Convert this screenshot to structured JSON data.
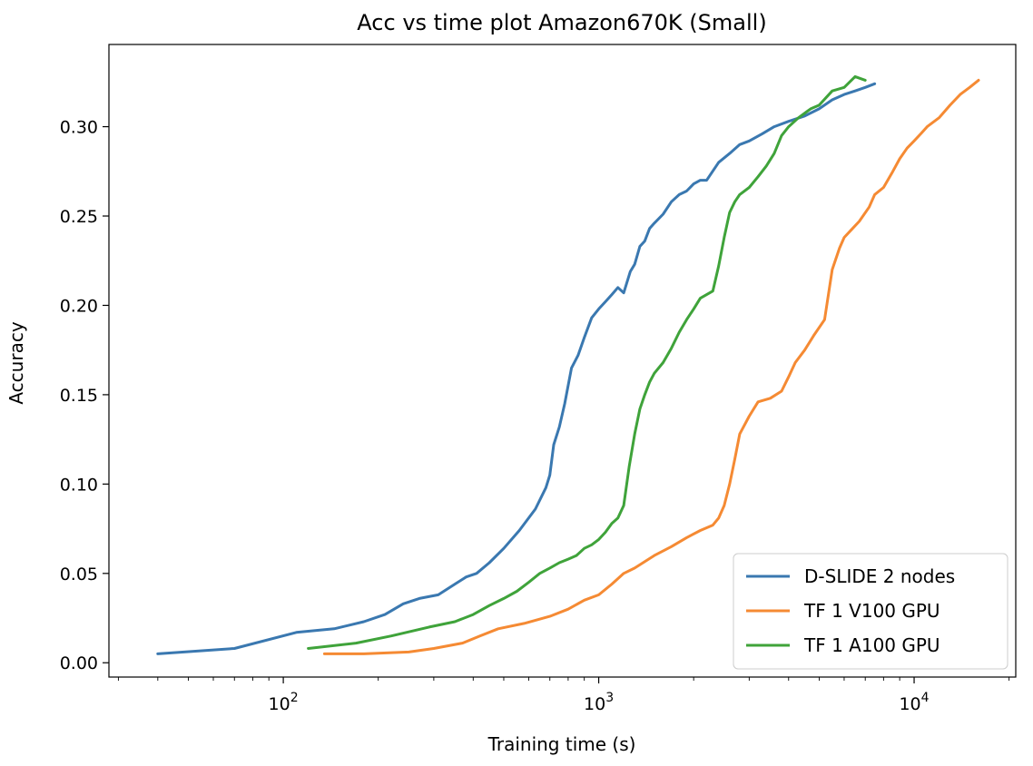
{
  "chart_data": {
    "type": "line",
    "title": "Acc vs time plot Amazon670K (Small)",
    "xlabel": "Training time (s)",
    "ylabel": "Accuracy",
    "xscale": "log",
    "xlim": [
      28,
      21000
    ],
    "ylim": [
      -0.008,
      0.346
    ],
    "yticks": [
      0.0,
      0.05,
      0.1,
      0.15,
      0.2,
      0.25,
      0.3
    ],
    "ytick_labels": [
      "0.00",
      "0.05",
      "0.10",
      "0.15",
      "0.20",
      "0.25",
      "0.30"
    ],
    "xticks": [
      100,
      1000,
      10000
    ],
    "xtick_labels": [
      {
        "base": "10",
        "exp": "2"
      },
      {
        "base": "10",
        "exp": "3"
      },
      {
        "base": "10",
        "exp": "4"
      }
    ],
    "grid": false,
    "legend_position": "lower-right",
    "series": [
      {
        "name": "D-SLIDE 2 nodes",
        "color": "#3a78b0",
        "x": [
          40,
          70,
          110,
          145,
          180,
          210,
          240,
          270,
          310,
          350,
          380,
          410,
          450,
          500,
          560,
          630,
          680,
          700,
          720,
          750,
          780,
          820,
          860,
          900,
          950,
          1000,
          1050,
          1100,
          1150,
          1200,
          1260,
          1300,
          1350,
          1400,
          1450,
          1500,
          1600,
          1700,
          1800,
          1900,
          2000,
          2100,
          2200,
          2400,
          2600,
          2800,
          3000,
          3300,
          3600,
          4000,
          4500,
          5000,
          5500,
          6000,
          6500,
          7000,
          7500
        ],
        "y": [
          0.005,
          0.008,
          0.017,
          0.019,
          0.023,
          0.027,
          0.033,
          0.036,
          0.038,
          0.044,
          0.048,
          0.05,
          0.056,
          0.064,
          0.074,
          0.086,
          0.098,
          0.105,
          0.122,
          0.132,
          0.145,
          0.165,
          0.172,
          0.182,
          0.193,
          0.198,
          0.202,
          0.206,
          0.21,
          0.207,
          0.219,
          0.223,
          0.233,
          0.236,
          0.243,
          0.246,
          0.251,
          0.258,
          0.262,
          0.264,
          0.268,
          0.27,
          0.27,
          0.28,
          0.285,
          0.29,
          0.292,
          0.296,
          0.3,
          0.303,
          0.306,
          0.31,
          0.315,
          0.318,
          0.32,
          0.322,
          0.324
        ]
      },
      {
        "name": "TF 1 V100 GPU",
        "color": "#f58a33",
        "x": [
          135,
          180,
          250,
          300,
          370,
          420,
          480,
          580,
          700,
          800,
          900,
          1000,
          1100,
          1200,
          1300,
          1500,
          1700,
          1900,
          2100,
          2300,
          2400,
          2500,
          2600,
          2700,
          2800,
          3000,
          3200,
          3500,
          3800,
          4000,
          4200,
          4500,
          4800,
          5200,
          5500,
          5800,
          6000,
          6300,
          6700,
          7200,
          7500,
          8000,
          8500,
          9000,
          9500,
          10000,
          10500,
          11000,
          12000,
          13000,
          14000,
          15000,
          16000
        ],
        "y": [
          0.005,
          0.005,
          0.006,
          0.008,
          0.011,
          0.015,
          0.019,
          0.022,
          0.026,
          0.03,
          0.035,
          0.038,
          0.044,
          0.05,
          0.053,
          0.06,
          0.065,
          0.07,
          0.074,
          0.077,
          0.081,
          0.088,
          0.1,
          0.114,
          0.128,
          0.138,
          0.146,
          0.148,
          0.152,
          0.16,
          0.168,
          0.175,
          0.183,
          0.192,
          0.22,
          0.232,
          0.238,
          0.242,
          0.247,
          0.255,
          0.262,
          0.266,
          0.274,
          0.282,
          0.288,
          0.292,
          0.296,
          0.3,
          0.305,
          0.312,
          0.318,
          0.322,
          0.326
        ]
      },
      {
        "name": "TF 1 A100 GPU",
        "color": "#3fa33a",
        "x": [
          120,
          170,
          220,
          290,
          350,
          400,
          450,
          500,
          550,
          600,
          650,
          700,
          750,
          800,
          850,
          900,
          950,
          1000,
          1050,
          1100,
          1150,
          1200,
          1250,
          1300,
          1350,
          1400,
          1450,
          1500,
          1600,
          1700,
          1800,
          1900,
          2000,
          2100,
          2200,
          2300,
          2400,
          2500,
          2600,
          2700,
          2800,
          3000,
          3200,
          3400,
          3600,
          3800,
          4000,
          4300,
          4700,
          5000,
          5500,
          6000,
          6500,
          7000
        ],
        "y": [
          0.008,
          0.011,
          0.015,
          0.02,
          0.023,
          0.027,
          0.032,
          0.036,
          0.04,
          0.045,
          0.05,
          0.053,
          0.056,
          0.058,
          0.06,
          0.064,
          0.066,
          0.069,
          0.073,
          0.078,
          0.081,
          0.088,
          0.11,
          0.128,
          0.142,
          0.15,
          0.157,
          0.162,
          0.168,
          0.176,
          0.185,
          0.192,
          0.198,
          0.204,
          0.206,
          0.208,
          0.222,
          0.238,
          0.252,
          0.258,
          0.262,
          0.266,
          0.272,
          0.278,
          0.285,
          0.295,
          0.3,
          0.305,
          0.31,
          0.312,
          0.32,
          0.322,
          0.328,
          0.326
        ]
      }
    ]
  }
}
